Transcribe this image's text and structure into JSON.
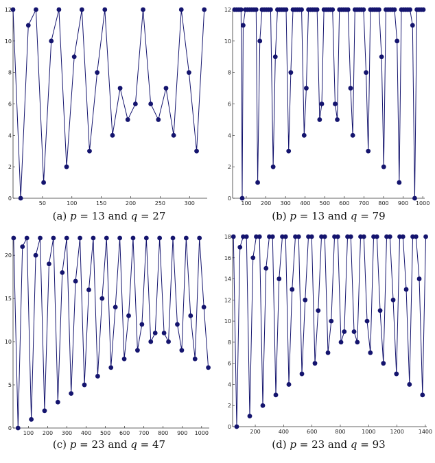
{
  "colors": {
    "series": "#14146e",
    "axis": "#333333"
  },
  "chart_data": [
    {
      "type": "line",
      "caption": {
        "prefix": "(a) ",
        "p_sym": "p",
        "eq1": " = 13 and ",
        "q_sym": "q",
        "eq2": " = 27"
      },
      "xlim": [
        0,
        330
      ],
      "ylim": [
        0,
        12
      ],
      "xticks": [
        50,
        100,
        150,
        200,
        250,
        300
      ],
      "yticks": [
        0,
        2,
        4,
        6,
        8,
        10,
        12
      ],
      "x": [
        0,
        13,
        26,
        39,
        52,
        65,
        78,
        91,
        104,
        117,
        130,
        143,
        156,
        169,
        182,
        195,
        208,
        221,
        234,
        247,
        260,
        273,
        286,
        299,
        312,
        325
      ],
      "y": [
        12,
        0,
        11,
        12,
        1,
        10,
        12,
        2,
        9,
        12,
        3,
        8,
        12,
        4,
        7,
        5,
        6,
        12,
        6,
        5,
        7,
        4,
        12,
        8,
        3,
        12
      ]
    },
    {
      "type": "line",
      "caption": {
        "prefix": "(b) ",
        "p_sym": "p",
        "eq1": " = 13 and ",
        "q_sym": "q",
        "eq2": " = 79"
      },
      "xlim": [
        30,
        1010
      ],
      "ylim": [
        0,
        12
      ],
      "xticks": [
        100,
        200,
        300,
        400,
        500,
        600,
        700,
        800,
        900,
        1000
      ],
      "yticks": [
        0,
        2,
        4,
        6,
        8,
        10,
        12
      ],
      "x": [
        40,
        51,
        62,
        73,
        79,
        84,
        95,
        106,
        117,
        128,
        139,
        150,
        158,
        169,
        180,
        191,
        202,
        213,
        224,
        237,
        248,
        259,
        270,
        281,
        292,
        303,
        316,
        327,
        338,
        349,
        360,
        371,
        382,
        395,
        406,
        417,
        428,
        439,
        450,
        461,
        474,
        485,
        496,
        507,
        518,
        529,
        540,
        553,
        564,
        575,
        586,
        597,
        608,
        619,
        632,
        643,
        654,
        665,
        676,
        687,
        698,
        711,
        722,
        733,
        744,
        755,
        766,
        777,
        790,
        801,
        812,
        823,
        834,
        845,
        856,
        869,
        880,
        891,
        902,
        913,
        924,
        935,
        948,
        959,
        970,
        981,
        992,
        1003
      ],
      "y": [
        12,
        12,
        12,
        12,
        0,
        11,
        12,
        12,
        12,
        12,
        12,
        12,
        1,
        10,
        12,
        12,
        12,
        12,
        12,
        2,
        9,
        12,
        12,
        12,
        12,
        12,
        3,
        8,
        12,
        12,
        12,
        12,
        12,
        4,
        7,
        12,
        12,
        12,
        12,
        12,
        5,
        6,
        12,
        12,
        12,
        12,
        12,
        6,
        5,
        12,
        12,
        12,
        12,
        12,
        7,
        4,
        12,
        12,
        12,
        12,
        12,
        8,
        3,
        12,
        12,
        12,
        12,
        12,
        9,
        2,
        12,
        12,
        12,
        12,
        12,
        10,
        1,
        12,
        12,
        12,
        12,
        12,
        11,
        0,
        12,
        12,
        12,
        12
      ]
    },
    {
      "type": "line",
      "caption": {
        "prefix": "(c) ",
        "p_sym": "p",
        "eq1": " = 23 and ",
        "q_sym": "q",
        "eq2": " = 47"
      },
      "xlim": [
        20,
        1040
      ],
      "ylim": [
        0,
        22
      ],
      "xticks": [
        100,
        200,
        300,
        400,
        500,
        600,
        700,
        800,
        900,
        1000
      ],
      "yticks": [
        0,
        5,
        10,
        15,
        20
      ],
      "x": [
        23,
        46,
        69,
        92,
        115,
        138,
        161,
        184,
        207,
        230,
        253,
        276,
        299,
        322,
        345,
        368,
        391,
        414,
        437,
        460,
        483,
        506,
        529,
        552,
        575,
        598,
        621,
        644,
        667,
        690,
        713,
        736,
        759,
        782,
        805,
        828,
        851,
        874,
        897,
        920,
        943,
        966,
        989,
        1012,
        1035
      ],
      "y": [
        22,
        0,
        21,
        22,
        1,
        20,
        22,
        2,
        19,
        22,
        3,
        18,
        22,
        4,
        17,
        22,
        5,
        16,
        22,
        6,
        15,
        22,
        7,
        14,
        22,
        8,
        13,
        22,
        9,
        12,
        22,
        10,
        11,
        22,
        11,
        10,
        22,
        12,
        9,
        22,
        13,
        8,
        22,
        14,
        7
      ]
    },
    {
      "type": "line",
      "caption": {
        "prefix": "(d) ",
        "p_sym": "p",
        "eq1": " = 23 and ",
        "q_sym": "q",
        "eq2": " = 93"
      },
      "xlim": [
        40,
        1410
      ],
      "ylim": [
        0,
        18
      ],
      "xticks": [
        200,
        400,
        600,
        800,
        1000,
        1200,
        1400
      ],
      "yticks": [
        0,
        2,
        4,
        6,
        8,
        10,
        12,
        14,
        16,
        18
      ],
      "x": [
        46,
        69,
        92,
        115,
        138,
        161,
        184,
        207,
        230,
        253,
        276,
        299,
        322,
        345,
        368,
        391,
        414,
        437,
        460,
        483,
        506,
        529,
        552,
        575,
        598,
        621,
        644,
        667,
        690,
        713,
        736,
        759,
        782,
        805,
        828,
        851,
        874,
        897,
        920,
        943,
        966,
        989,
        1012,
        1035,
        1058,
        1081,
        1104,
        1127,
        1150,
        1173,
        1196,
        1219,
        1242,
        1265,
        1288,
        1311,
        1334,
        1357,
        1380,
        1403
      ],
      "y": [
        18,
        0,
        17,
        18,
        18,
        1,
        16,
        18,
        18,
        2,
        15,
        18,
        18,
        3,
        14,
        18,
        18,
        4,
        13,
        18,
        18,
        5,
        12,
        18,
        18,
        6,
        11,
        18,
        18,
        7,
        10,
        18,
        18,
        8,
        9,
        18,
        18,
        9,
        8,
        18,
        18,
        10,
        7,
        18,
        18,
        11,
        6,
        18,
        18,
        12,
        5,
        18,
        18,
        13,
        4,
        18,
        18,
        14,
        3,
        18
      ]
    }
  ]
}
